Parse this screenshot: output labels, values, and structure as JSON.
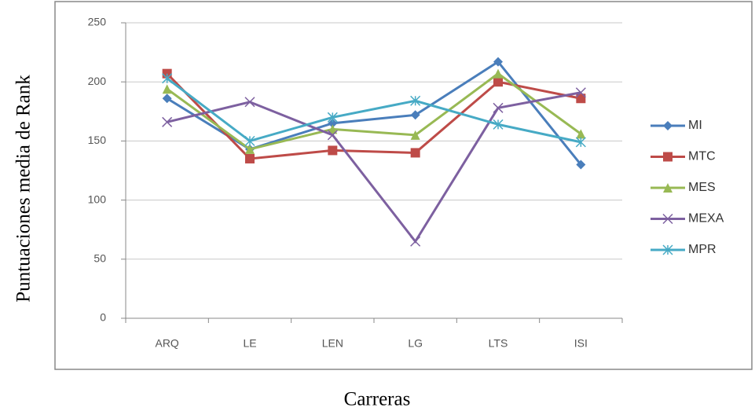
{
  "chart_data": {
    "type": "line",
    "x_label": "Carreras",
    "y_label": "Puntuaciones media de Rank",
    "categories": [
      "ARQ",
      "LE",
      "LEN",
      "LG",
      "LTS",
      "ISI"
    ],
    "ylim": [
      0,
      250
    ],
    "yticks": [
      0,
      50,
      100,
      150,
      200,
      250
    ],
    "grid": true,
    "legend": "right",
    "series": [
      {
        "name": "MI",
        "color": "#4a7ebb",
        "marker": "diamond",
        "values": [
          186,
          143,
          165,
          172,
          217,
          130
        ]
      },
      {
        "name": "MTC",
        "color": "#be4b48",
        "marker": "square",
        "values": [
          207,
          135,
          142,
          140,
          200,
          186
        ]
      },
      {
        "name": "MES",
        "color": "#98b954",
        "marker": "triangle",
        "values": [
          194,
          143,
          160,
          155,
          207,
          156
        ]
      },
      {
        "name": "MEXA",
        "color": "#7d60a0",
        "marker": "x",
        "values": [
          166,
          183,
          155,
          65,
          178,
          191
        ]
      },
      {
        "name": "MPR",
        "color": "#46aac5",
        "marker": "star",
        "values": [
          203,
          150,
          170,
          184,
          164,
          149
        ]
      }
    ]
  }
}
